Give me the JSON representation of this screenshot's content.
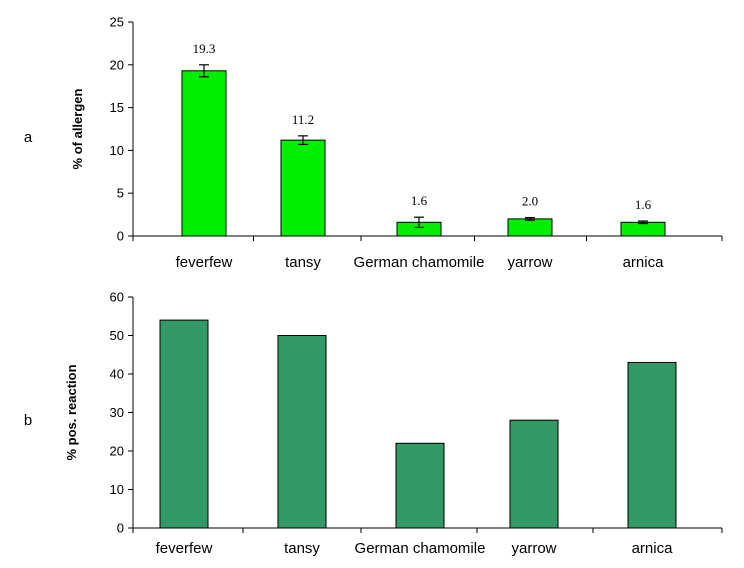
{
  "chart_data": [
    {
      "type": "bar",
      "panel_label": "a",
      "categories": [
        "feverfew",
        "tansy",
        "German chamomile",
        "yarrow",
        "arnica"
      ],
      "values": [
        19.3,
        11.2,
        1.6,
        2.0,
        1.6
      ],
      "errors": [
        0.7,
        0.5,
        0.6,
        0.15,
        0.15
      ],
      "data_labels": [
        "19.3",
        "11.2",
        "1.6",
        "2.0",
        "1.6"
      ],
      "ylabel": "% of allergen",
      "ylim": [
        0,
        25
      ],
      "yticks": [
        "0",
        "5",
        "10",
        "15",
        "20",
        "25"
      ],
      "bar_color": "#00ee00",
      "grid": false
    },
    {
      "type": "bar",
      "panel_label": "b",
      "categories": [
        "feverfew",
        "tansy",
        "German chamomile",
        "yarrow",
        "arnica"
      ],
      "values": [
        54,
        50,
        22,
        28,
        43
      ],
      "ylabel": "% pos. reaction",
      "ylim": [
        0,
        60
      ],
      "yticks": [
        "0",
        "10",
        "20",
        "30",
        "40",
        "50",
        "60"
      ],
      "bar_color": "#339966",
      "grid": false
    }
  ]
}
